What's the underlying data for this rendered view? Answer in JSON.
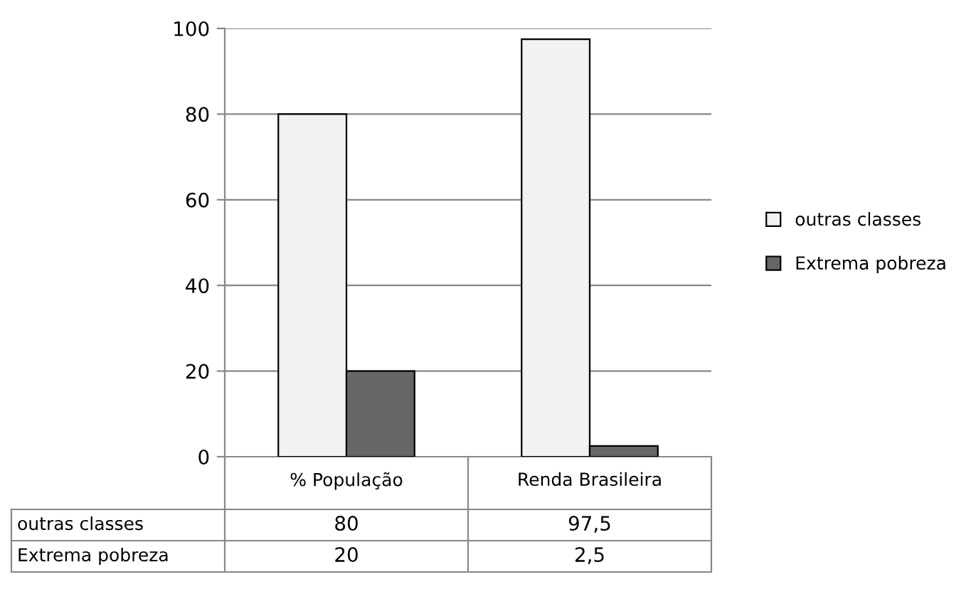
{
  "chart_data": {
    "type": "bar",
    "categories": [
      "% População",
      "Renda Brasileira"
    ],
    "series": [
      {
        "name": "outras classes",
        "color": "#f2f2f2",
        "values": [
          80,
          97.5
        ],
        "value_labels": [
          "80",
          "97,5"
        ]
      },
      {
        "name": "Extrema pobreza",
        "color": "#666666",
        "values": [
          20,
          2.5
        ],
        "value_labels": [
          "20",
          "2,5"
        ]
      }
    ],
    "ylim": [
      0,
      100
    ],
    "yticks": [
      0,
      20,
      40,
      60,
      80,
      100
    ],
    "grid": "y",
    "legend": "right"
  }
}
